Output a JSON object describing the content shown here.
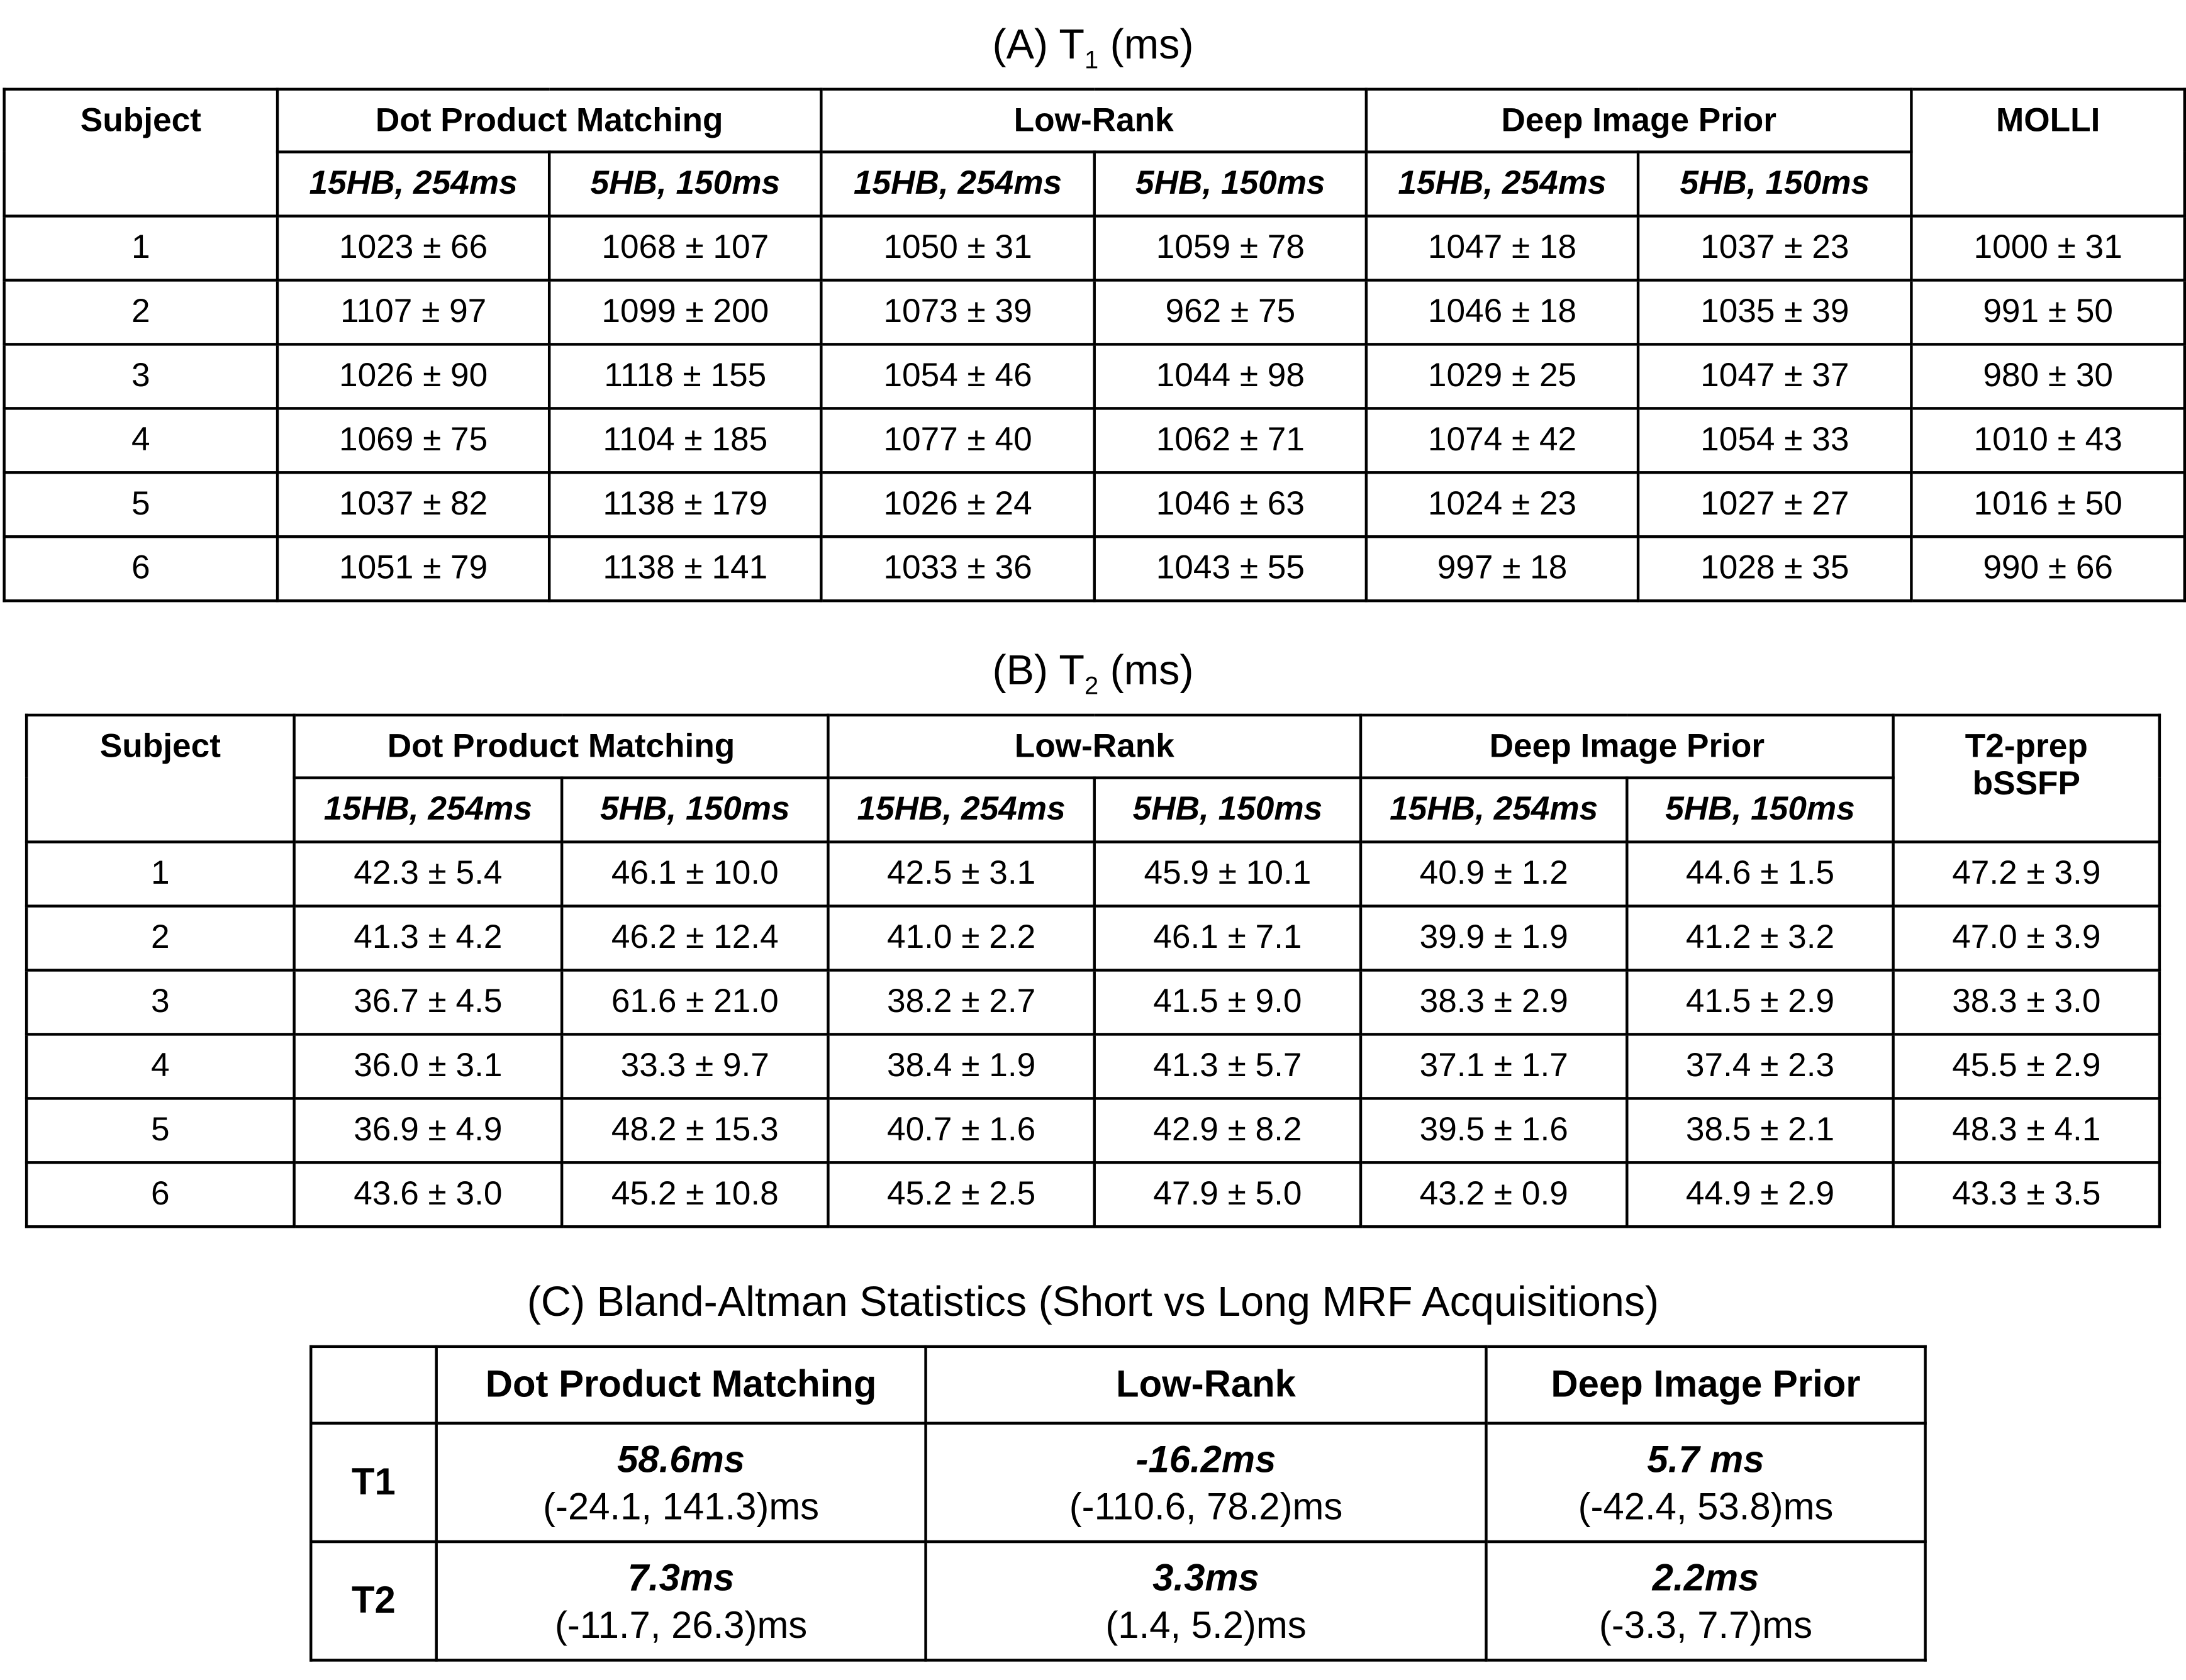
{
  "table_a": {
    "title_prefix": "(A) T",
    "title_sub": "1",
    "title_suffix": " (ms)",
    "headers": [
      "Subject",
      "Dot Product Matching",
      "Low-Rank",
      "Deep Image Prior",
      "MOLLI"
    ],
    "subheaders": [
      "15HB, 254ms",
      "5HB, 150ms",
      "15HB, 254ms",
      "5HB, 150ms",
      "15HB, 254ms",
      "5HB, 150ms"
    ],
    "rows": [
      [
        "1",
        "1023 ± 66",
        "1068 ± 107",
        "1050 ± 31",
        "1059 ± 78",
        "1047 ± 18",
        "1037 ± 23",
        "1000 ± 31"
      ],
      [
        "2",
        "1107 ± 97",
        "1099 ± 200",
        "1073 ± 39",
        "962 ± 75",
        "1046 ± 18",
        "1035 ± 39",
        "991 ± 50"
      ],
      [
        "3",
        "1026 ± 90",
        "1118 ± 155",
        "1054 ± 46",
        "1044 ± 98",
        "1029 ± 25",
        "1047 ± 37",
        "980 ± 30"
      ],
      [
        "4",
        "1069 ± 75",
        "1104 ± 185",
        "1077 ± 40",
        "1062 ± 71",
        "1074 ± 42",
        "1054 ± 33",
        "1010 ± 43"
      ],
      [
        "5",
        "1037 ± 82",
        "1138 ± 179",
        "1026 ± 24",
        "1046 ± 63",
        "1024 ± 23",
        "1027 ± 27",
        "1016 ± 50"
      ],
      [
        "6",
        "1051 ± 79",
        "1138 ± 141",
        "1033 ± 36",
        "1043 ± 55",
        "997 ± 18",
        "1028 ± 35",
        "990 ± 66"
      ]
    ]
  },
  "table_b": {
    "title_prefix": "(B) T",
    "title_sub": "2",
    "title_suffix": " (ms)",
    "headers": [
      "Subject",
      "Dot Product Matching",
      "Low-Rank",
      "Deep Image Prior",
      "T2-prep bSSFP"
    ],
    "subheaders": [
      "15HB, 254ms",
      "5HB, 150ms",
      "15HB, 254ms",
      "5HB, 150ms",
      "15HB, 254ms",
      "5HB, 150ms"
    ],
    "rows": [
      [
        "1",
        "42.3 ± 5.4",
        "46.1 ± 10.0",
        "42.5 ± 3.1",
        "45.9 ± 10.1",
        "40.9 ± 1.2",
        "44.6 ± 1.5",
        "47.2 ± 3.9"
      ],
      [
        "2",
        "41.3 ± 4.2",
        "46.2 ± 12.4",
        "41.0 ± 2.2",
        "46.1 ± 7.1",
        "39.9 ± 1.9",
        "41.2 ± 3.2",
        "47.0 ± 3.9"
      ],
      [
        "3",
        "36.7 ± 4.5",
        "61.6 ± 21.0",
        "38.2 ± 2.7",
        "41.5 ± 9.0",
        "38.3 ± 2.9",
        "41.5 ± 2.9",
        "38.3 ± 3.0"
      ],
      [
        "4",
        "36.0 ± 3.1",
        "33.3 ± 9.7",
        "38.4 ± 1.9",
        "41.3 ± 5.7",
        "37.1 ± 1.7",
        "37.4 ± 2.3",
        "45.5 ± 2.9"
      ],
      [
        "5",
        "36.9 ± 4.9",
        "48.2 ± 15.3",
        "40.7 ± 1.6",
        "42.9 ± 8.2",
        "39.5 ± 1.6",
        "38.5 ± 2.1",
        "48.3 ± 4.1"
      ],
      [
        "6",
        "43.6 ± 3.0",
        "45.2 ± 10.8",
        "45.2 ± 2.5",
        "47.9 ± 5.0",
        "43.2 ± 0.9",
        "44.9 ± 2.9",
        "43.3 ± 3.5"
      ]
    ]
  },
  "table_c": {
    "title": "(C) Bland-Altman Statistics (Short vs Long MRF Acquisitions)",
    "headers": [
      "",
      "Dot Product Matching",
      "Low-Rank",
      "Deep Image Prior"
    ],
    "rows": [
      {
        "label": "T1",
        "cells": [
          {
            "bias": "58.6ms",
            "loa": "(-24.1, 141.3)ms"
          },
          {
            "bias": "-16.2ms",
            "loa": "(-110.6, 78.2)ms"
          },
          {
            "bias": "5.7 ms",
            "loa": "(-42.4, 53.8)ms"
          }
        ]
      },
      {
        "label": "T2",
        "cells": [
          {
            "bias": "7.3ms",
            "loa": "(-11.7, 26.3)ms"
          },
          {
            "bias": "3.3ms",
            "loa": "(1.4, 5.2)ms"
          },
          {
            "bias": "2.2ms",
            "loa": "(-3.3, 7.7)ms"
          }
        ]
      }
    ]
  }
}
